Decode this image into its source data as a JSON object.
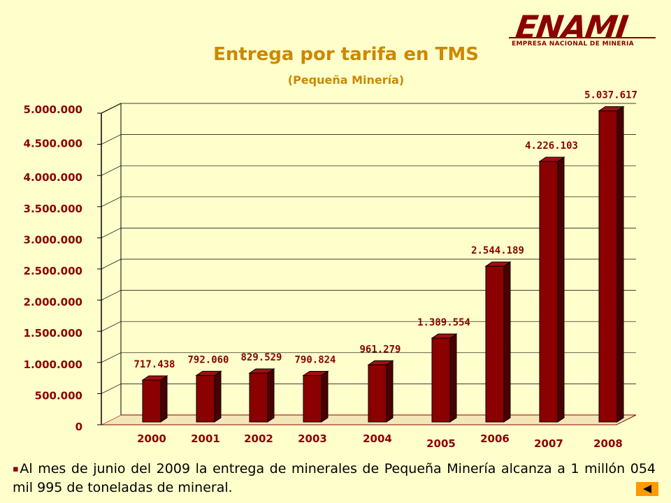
{
  "title": "Entrega por tarifa en TMS",
  "subtitle": "(Pequeña Minería)",
  "logo": {
    "name": "ENAMI",
    "tagline": "EMPRESA NACIONAL DE MINERIA"
  },
  "colors": {
    "bar": "#8B0000",
    "bar_dark": "#4A0000",
    "accent": "#CC8800",
    "background": "#FFFFCC"
  },
  "chart_data": {
    "type": "bar",
    "categories": [
      "2000",
      "2001",
      "2002",
      "2003",
      "2004",
      "2005",
      "2006",
      "2007",
      "2008"
    ],
    "values": [
      717438,
      792060,
      829529,
      790824,
      961279,
      1389554,
      2544189,
      4226103,
      5037617
    ],
    "value_labels": [
      "717.438",
      "792.060",
      "829.529",
      "790.824",
      "961.279",
      "1.389.554",
      "2.544.189",
      "4.226.103",
      "5.037.617"
    ],
    "y_ticks": [
      "0",
      "500.000",
      "1.000.000",
      "1.500.000",
      "2.000.000",
      "2.500.000",
      "3.000.000",
      "3.500.000",
      "4.000.000",
      "4.500.000",
      "5.000.000"
    ],
    "ylim": [
      0,
      5000000
    ],
    "grid": true,
    "three_d": true,
    "title": "Entrega por tarifa en TMS",
    "xlabel": "",
    "ylabel": ""
  },
  "footer": {
    "bullet": "▪",
    "text": "Al mes de junio del 2009 la entrega de minerales de Pequeña Minería alcanza a 1 millón 054 mil 995 de toneladas de mineral."
  },
  "nav": {
    "icon": "arrow-left-icon"
  }
}
